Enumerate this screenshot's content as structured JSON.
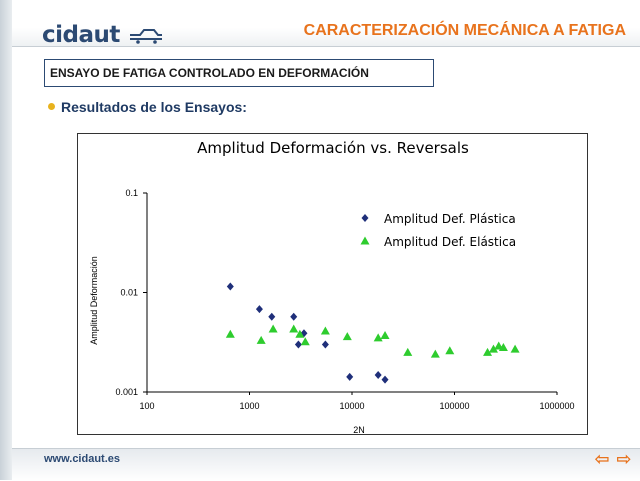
{
  "header": {
    "logo_text": "cidaut",
    "title": "CARACTERIZACIÓN MECÁNICA A FATIGA"
  },
  "section": {
    "label": "ENSAYO DE FATIGA CONTROLADO EN DEFORMACIÓN"
  },
  "subheading": "Resultados de los Ensayos:",
  "footer": {
    "url": "www.cidaut.es",
    "prev_icon": "arrow-left-icon",
    "next_icon": "arrow-right-icon",
    "prev_glyph": "⇦",
    "next_glyph": "⇨"
  },
  "colors": {
    "title": "#e8731d",
    "brand": "#2c4a73",
    "plastic_series": "#1f2f7a",
    "elastic_series": "#2ecc2e"
  },
  "chart_data": {
    "type": "scatter",
    "title": "Amplitud Deformación vs. Reversals",
    "xlabel": "2N",
    "ylabel": "Amplitud Deformación",
    "xscale": "log",
    "yscale": "log",
    "xlim": [
      100,
      1000000
    ],
    "ylim": [
      0.001,
      0.1
    ],
    "x_ticks": [
      100,
      1000,
      10000,
      100000,
      1000000
    ],
    "x_tick_labels": [
      "100",
      "1000",
      "10000",
      "100000",
      "1000000"
    ],
    "y_ticks": [
      0.001,
      0.01,
      0.1
    ],
    "y_tick_labels": [
      "0.001",
      "0.01",
      "0.1"
    ],
    "grid": false,
    "legend_position": "top-right",
    "series": [
      {
        "name": "Amplitud Def. Plástica",
        "marker": "diamond",
        "color": "#1f2f7a",
        "points": [
          [
            650,
            0.0115
          ],
          [
            1250,
            0.0068
          ],
          [
            1650,
            0.0057
          ],
          [
            2700,
            0.0057
          ],
          [
            3000,
            0.003
          ],
          [
            3400,
            0.0039
          ],
          [
            5500,
            0.003
          ],
          [
            9500,
            0.00142
          ],
          [
            18000,
            0.00148
          ],
          [
            21000,
            0.00133
          ]
        ]
      },
      {
        "name": "Amplitud Def. Elástica",
        "marker": "triangle",
        "color": "#2ecc2e",
        "points": [
          [
            650,
            0.0038
          ],
          [
            1300,
            0.0033
          ],
          [
            1700,
            0.0043
          ],
          [
            2700,
            0.0043
          ],
          [
            3100,
            0.0038
          ],
          [
            3500,
            0.0032
          ],
          [
            5500,
            0.0041
          ],
          [
            9000,
            0.0036
          ],
          [
            18000,
            0.0035
          ],
          [
            21000,
            0.0037
          ],
          [
            35000,
            0.0025
          ],
          [
            65000,
            0.0024
          ],
          [
            90000,
            0.0026
          ],
          [
            210000,
            0.0025
          ],
          [
            240000,
            0.0027
          ],
          [
            270000,
            0.0029
          ],
          [
            300000,
            0.0028
          ],
          [
            390000,
            0.0027
          ]
        ]
      }
    ]
  }
}
